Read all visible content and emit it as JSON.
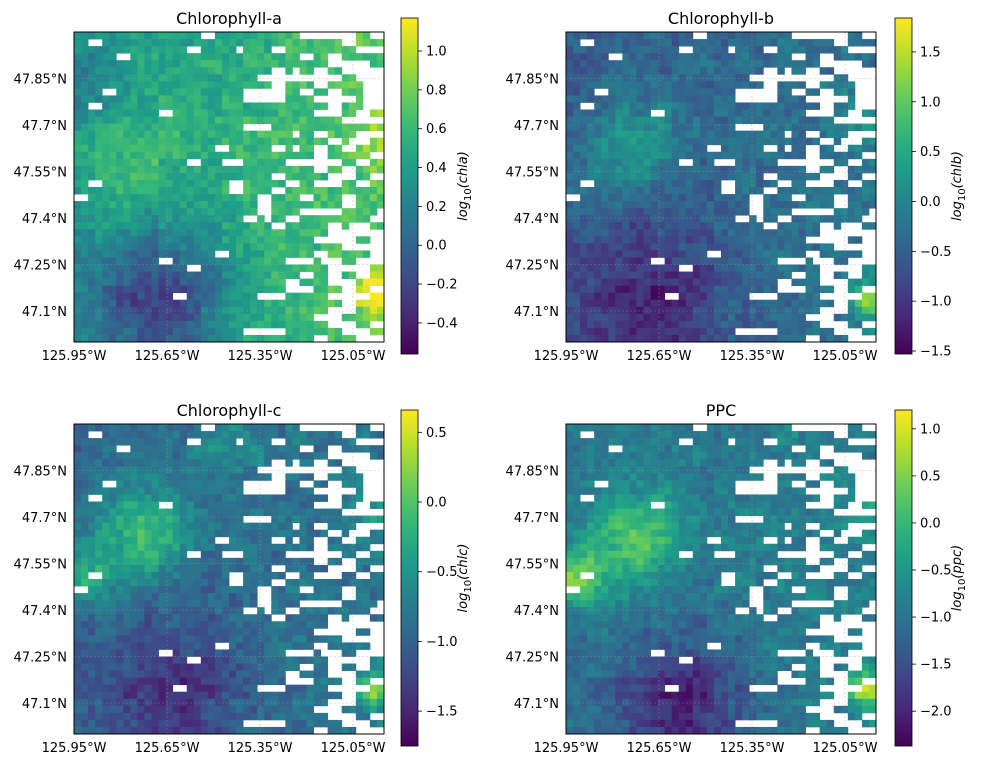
{
  "chart_data": [
    {
      "type": "heatmap",
      "title": "Chlorophyll-a",
      "colorbar_label": "log10(chla)",
      "colorbar_label_parts": {
        "prefix": "log",
        "sub": "10",
        "suffix": "(chla)"
      },
      "colormap": "viridis",
      "value_range": [
        -0.56,
        1.17
      ],
      "colorbar_ticks": [
        "1.0",
        "0.8",
        "0.6",
        "0.4",
        "0.2",
        "0.0",
        "−0.2",
        "−0.4"
      ],
      "colorbar_tick_values": [
        1.0,
        0.8,
        0.6,
        0.4,
        0.2,
        0.0,
        -0.2,
        -0.4
      ],
      "x_ticks": [
        "125.95°W",
        "125.65°W",
        "125.35°W",
        "125.05°W"
      ],
      "y_ticks": [
        "47.85°N",
        "47.7°N",
        "47.55°N",
        "47.4°N",
        "47.25°N",
        "47.1°N"
      ],
      "xlim": [
        -125.95,
        -124.95
      ],
      "ylim": [
        47.0,
        48.0
      ]
    },
    {
      "type": "heatmap",
      "title": "Chlorophyll-b",
      "colorbar_label": "log10(chlb)",
      "colorbar_label_parts": {
        "prefix": "log",
        "sub": "10",
        "suffix": "(chlb)"
      },
      "colormap": "viridis",
      "value_range": [
        -1.53,
        1.84
      ],
      "colorbar_ticks": [
        "1.5",
        "1.0",
        "0.5",
        "0.0",
        "−0.5",
        "−1.0",
        "−1.5"
      ],
      "colorbar_tick_values": [
        1.5,
        1.0,
        0.5,
        0.0,
        -0.5,
        -1.0,
        -1.5
      ],
      "x_ticks": [
        "125.95°W",
        "125.65°W",
        "125.35°W",
        "125.05°W"
      ],
      "y_ticks": [
        "47.85°N",
        "47.7°N",
        "47.55°N",
        "47.4°N",
        "47.25°N",
        "47.1°N"
      ],
      "xlim": [
        -125.95,
        -124.95
      ],
      "ylim": [
        47.0,
        48.0
      ]
    },
    {
      "type": "heatmap",
      "title": "Chlorophyll-c",
      "colorbar_label": "log10(chlc)",
      "colorbar_label_parts": {
        "prefix": "log",
        "sub": "10",
        "suffix": "(chlc)"
      },
      "colormap": "viridis",
      "value_range": [
        -1.75,
        0.66
      ],
      "colorbar_ticks": [
        "0.5",
        "0.0",
        "−0.5",
        "−1.0",
        "−1.5"
      ],
      "colorbar_tick_values": [
        0.5,
        0.0,
        -0.5,
        -1.0,
        -1.5
      ],
      "x_ticks": [
        "125.95°W",
        "125.65°W",
        "125.35°W",
        "125.05°W"
      ],
      "y_ticks": [
        "47.85°N",
        "47.7°N",
        "47.55°N",
        "47.4°N",
        "47.25°N",
        "47.1°N"
      ],
      "xlim": [
        -125.95,
        -124.95
      ],
      "ylim": [
        47.0,
        48.0
      ]
    },
    {
      "type": "heatmap",
      "title": "PPC",
      "colorbar_label": "log10(ppc)",
      "colorbar_label_parts": {
        "prefix": "log",
        "sub": "10",
        "suffix": "(ppc)"
      },
      "colormap": "viridis",
      "value_range": [
        -2.37,
        1.2
      ],
      "colorbar_ticks": [
        "1.0",
        "0.5",
        "0.0",
        "−0.5",
        "−1.0",
        "−1.5",
        "−2.0"
      ],
      "colorbar_tick_values": [
        1.0,
        0.5,
        0.0,
        -0.5,
        -1.0,
        -1.5,
        -2.0
      ],
      "x_ticks": [
        "125.95°W",
        "125.65°W",
        "125.35°W",
        "125.05°W"
      ],
      "y_ticks": [
        "47.85°N",
        "47.7°N",
        "47.55°N",
        "47.4°N",
        "47.25°N",
        "47.1°N"
      ],
      "xlim": [
        -125.95,
        -124.95
      ],
      "ylim": [
        47.0,
        48.0
      ]
    }
  ]
}
